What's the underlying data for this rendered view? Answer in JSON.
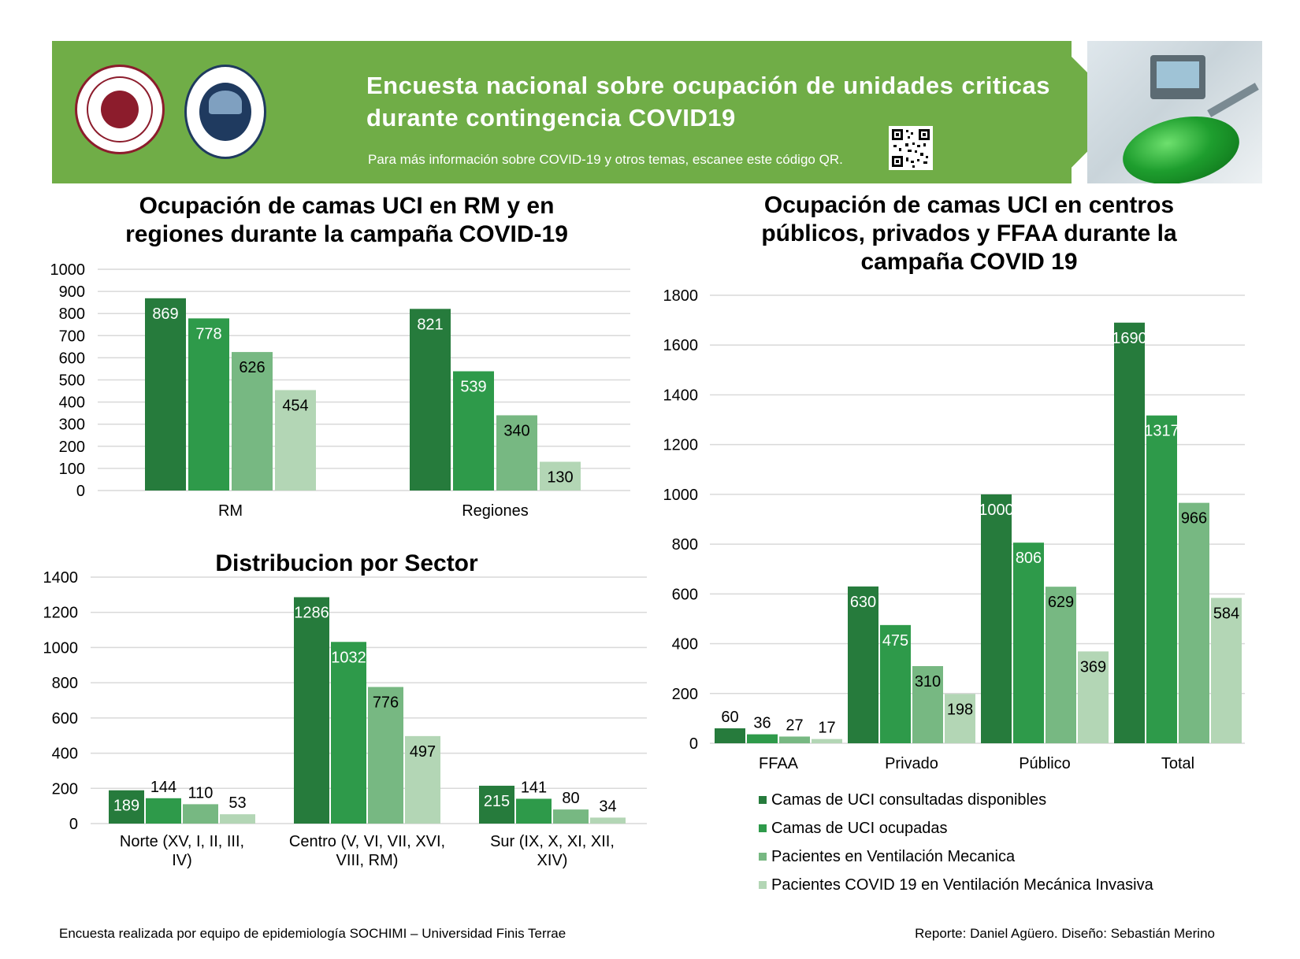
{
  "header": {
    "title": "Encuesta nacional sobre ocupación de unidades criticas durante contingencia COVID19",
    "subtitle": "Para más información sobre COVID-19 y otros temas, escanee este código QR.",
    "logos": [
      "SOCIEDAD CHILENA DE MEDICINA INTENSIVA",
      "UNIVERSIDAD FINIS TERRAE"
    ],
    "icons": [
      "qr-code-icon",
      "ventilator-photo"
    ]
  },
  "colors": {
    "banner": "#70ad47",
    "series": [
      "#267b3c",
      "#2e9a4a",
      "#77b882",
      "#b3d6b5"
    ]
  },
  "chart_data": [
    {
      "type": "bar",
      "title": "Ocupación de camas UCI en RM y en regiones durante la campaña COVID-19",
      "categories": [
        "RM",
        "Regiones"
      ],
      "series": [
        {
          "name": "Camas de UCI consultadas disponibles",
          "values": [
            869,
            821
          ]
        },
        {
          "name": "Camas de UCI ocupadas",
          "values": [
            778,
            539
          ]
        },
        {
          "name": "Pacientes en Ventilación Mecanica",
          "values": [
            626,
            340
          ]
        },
        {
          "name": "Pacientes COVID 19 en Ventilación Mecánica Invasiva",
          "values": [
            454,
            130
          ]
        }
      ],
      "ylim": [
        0,
        1000
      ],
      "yticks": [
        0,
        100,
        200,
        300,
        400,
        500,
        600,
        700,
        800,
        900,
        1000
      ],
      "grid": true
    },
    {
      "type": "bar",
      "title": "Distribucion por Sector",
      "categories": [
        "Norte (XV, I, II, III, IV)",
        "Centro (V, VI, VII, XVI, VIII, RM)",
        "Sur (IX, X, XI, XII, XIV)"
      ],
      "series": [
        {
          "name": "Camas de UCI consultadas disponibles",
          "values": [
            189,
            1286,
            215
          ]
        },
        {
          "name": "Camas de UCI ocupadas",
          "values": [
            144,
            1032,
            141
          ]
        },
        {
          "name": "Pacientes en Ventilación Mecanica",
          "values": [
            110,
            776,
            80
          ]
        },
        {
          "name": "Pacientes COVID 19 en Ventilación Mecánica Invasiva",
          "values": [
            53,
            497,
            34
          ]
        }
      ],
      "ylim": [
        0,
        1400
      ],
      "yticks": [
        0,
        200,
        400,
        600,
        800,
        1000,
        1200,
        1400
      ],
      "grid": true
    },
    {
      "type": "bar",
      "title": "Ocupación de camas UCI en centros públicos, privados y FFAA durante la campaña COVID 19",
      "categories": [
        "FFAA",
        "Privado",
        "Público",
        "Total"
      ],
      "series": [
        {
          "name": "Camas de UCI consultadas disponibles",
          "values": [
            60,
            630,
            1000,
            1690
          ]
        },
        {
          "name": "Camas de UCI ocupadas",
          "values": [
            36,
            475,
            806,
            1317
          ]
        },
        {
          "name": "Pacientes en Ventilación Mecanica",
          "values": [
            27,
            310,
            629,
            966
          ]
        },
        {
          "name": "Pacientes COVID 19 en Ventilación Mecánica Invasiva",
          "values": [
            17,
            198,
            369,
            584
          ]
        }
      ],
      "ylim": [
        0,
        1800
      ],
      "yticks": [
        0,
        200,
        400,
        600,
        800,
        1000,
        1200,
        1400,
        1600,
        1800
      ],
      "grid": true,
      "legend": "bottom"
    }
  ],
  "legend": [
    "Camas de UCI consultadas disponibles",
    "Camas de UCI ocupadas",
    "Pacientes en Ventilación Mecanica",
    "Pacientes COVID 19 en Ventilación Mecánica Invasiva"
  ],
  "footer": {
    "left": "Encuesta realizada por equipo de epidemiología SOCHIMI – Universidad Finis Terrae",
    "right": "Reporte: Daniel Agüero. Diseño: Sebastián Merino"
  }
}
